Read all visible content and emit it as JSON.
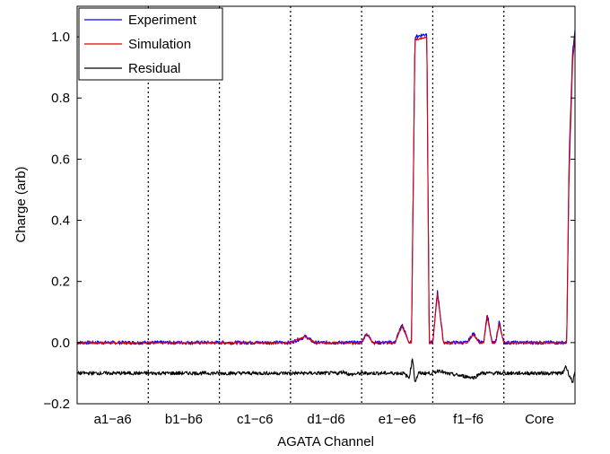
{
  "chart_data": {
    "type": "line",
    "xlabel": "AGATA Channel",
    "ylabel": "Charge (arb)",
    "ylim": [
      -0.2,
      1.1
    ],
    "yticks": [
      -0.2,
      0.0,
      0.2,
      0.4,
      0.6,
      0.8,
      1.0
    ],
    "ytick_labels": [
      "−0.2",
      "0.0",
      "0.2",
      "0.4",
      "0.6",
      "0.8",
      "1.0"
    ],
    "x_groups": [
      "a1−a6",
      "b1−b6",
      "c1−c6",
      "d1−d6",
      "e1−e6",
      "f1−f6",
      "Core"
    ],
    "group_width": 6,
    "legend_position": "top-left",
    "grid": false,
    "series": [
      {
        "name": "Experiment",
        "color": "#0000ff",
        "points": [
          [
            0,
            0.0
          ],
          [
            18,
            0.0
          ],
          [
            19.3,
            0.02
          ],
          [
            20,
            0.0
          ],
          [
            24,
            0.0
          ],
          [
            24.4,
            0.03
          ],
          [
            25,
            0.0
          ],
          [
            26.8,
            0.0
          ],
          [
            27.4,
            0.06
          ],
          [
            28,
            0.0
          ],
          [
            28.2,
            0.0
          ],
          [
            28.5,
            1.0
          ],
          [
            29.5,
            1.01
          ],
          [
            29.7,
            0.0
          ],
          [
            30,
            0.0
          ],
          [
            30.4,
            0.17
          ],
          [
            30.9,
            0.0
          ],
          [
            32.9,
            0.0
          ],
          [
            33.4,
            0.03
          ],
          [
            34,
            0.0
          ],
          [
            34.3,
            0.0
          ],
          [
            34.6,
            0.095
          ],
          [
            35,
            0.0
          ],
          [
            35.3,
            0.0
          ],
          [
            35.6,
            0.07
          ],
          [
            36,
            0.0
          ],
          [
            41.3,
            0.0
          ],
          [
            41.5,
            0.6
          ],
          [
            41.8,
            0.95
          ],
          [
            42,
            1.02
          ]
        ]
      },
      {
        "name": "Simulation",
        "color": "#e00000",
        "points": [
          [
            0,
            0.0
          ],
          [
            18,
            0.0
          ],
          [
            19.3,
            0.02
          ],
          [
            20,
            0.0
          ],
          [
            24,
            0.0
          ],
          [
            24.4,
            0.03
          ],
          [
            25,
            0.0
          ],
          [
            26.8,
            0.0
          ],
          [
            27.4,
            0.055
          ],
          [
            28,
            0.0
          ],
          [
            28.2,
            0.0
          ],
          [
            28.5,
            0.99
          ],
          [
            29.5,
            1.0
          ],
          [
            29.7,
            0.0
          ],
          [
            30,
            0.0
          ],
          [
            30.4,
            0.16
          ],
          [
            30.9,
            0.0
          ],
          [
            32.9,
            0.0
          ],
          [
            33.4,
            0.025
          ],
          [
            34,
            0.0
          ],
          [
            34.3,
            0.0
          ],
          [
            34.6,
            0.085
          ],
          [
            35,
            0.0
          ],
          [
            35.3,
            0.0
          ],
          [
            35.6,
            0.06
          ],
          [
            36,
            0.0
          ],
          [
            41.3,
            0.0
          ],
          [
            41.5,
            0.55
          ],
          [
            41.8,
            0.92
          ],
          [
            42,
            1.0
          ]
        ]
      },
      {
        "name": "Residual",
        "color": "#000000",
        "points": [
          [
            0,
            -0.1
          ],
          [
            22,
            -0.1
          ],
          [
            22.5,
            -0.095
          ],
          [
            23,
            -0.105
          ],
          [
            24,
            -0.1
          ],
          [
            27.5,
            -0.1
          ],
          [
            28.0,
            -0.115
          ],
          [
            28.3,
            -0.05
          ],
          [
            28.5,
            -0.13
          ],
          [
            28.8,
            -0.1
          ],
          [
            30,
            -0.1
          ],
          [
            30.6,
            -0.09
          ],
          [
            31,
            -0.1
          ],
          [
            33.5,
            -0.115
          ],
          [
            34,
            -0.1
          ],
          [
            41,
            -0.1
          ],
          [
            41.2,
            -0.075
          ],
          [
            41.5,
            -0.105
          ],
          [
            41.8,
            -0.13
          ],
          [
            42,
            -0.1
          ]
        ]
      }
    ]
  }
}
